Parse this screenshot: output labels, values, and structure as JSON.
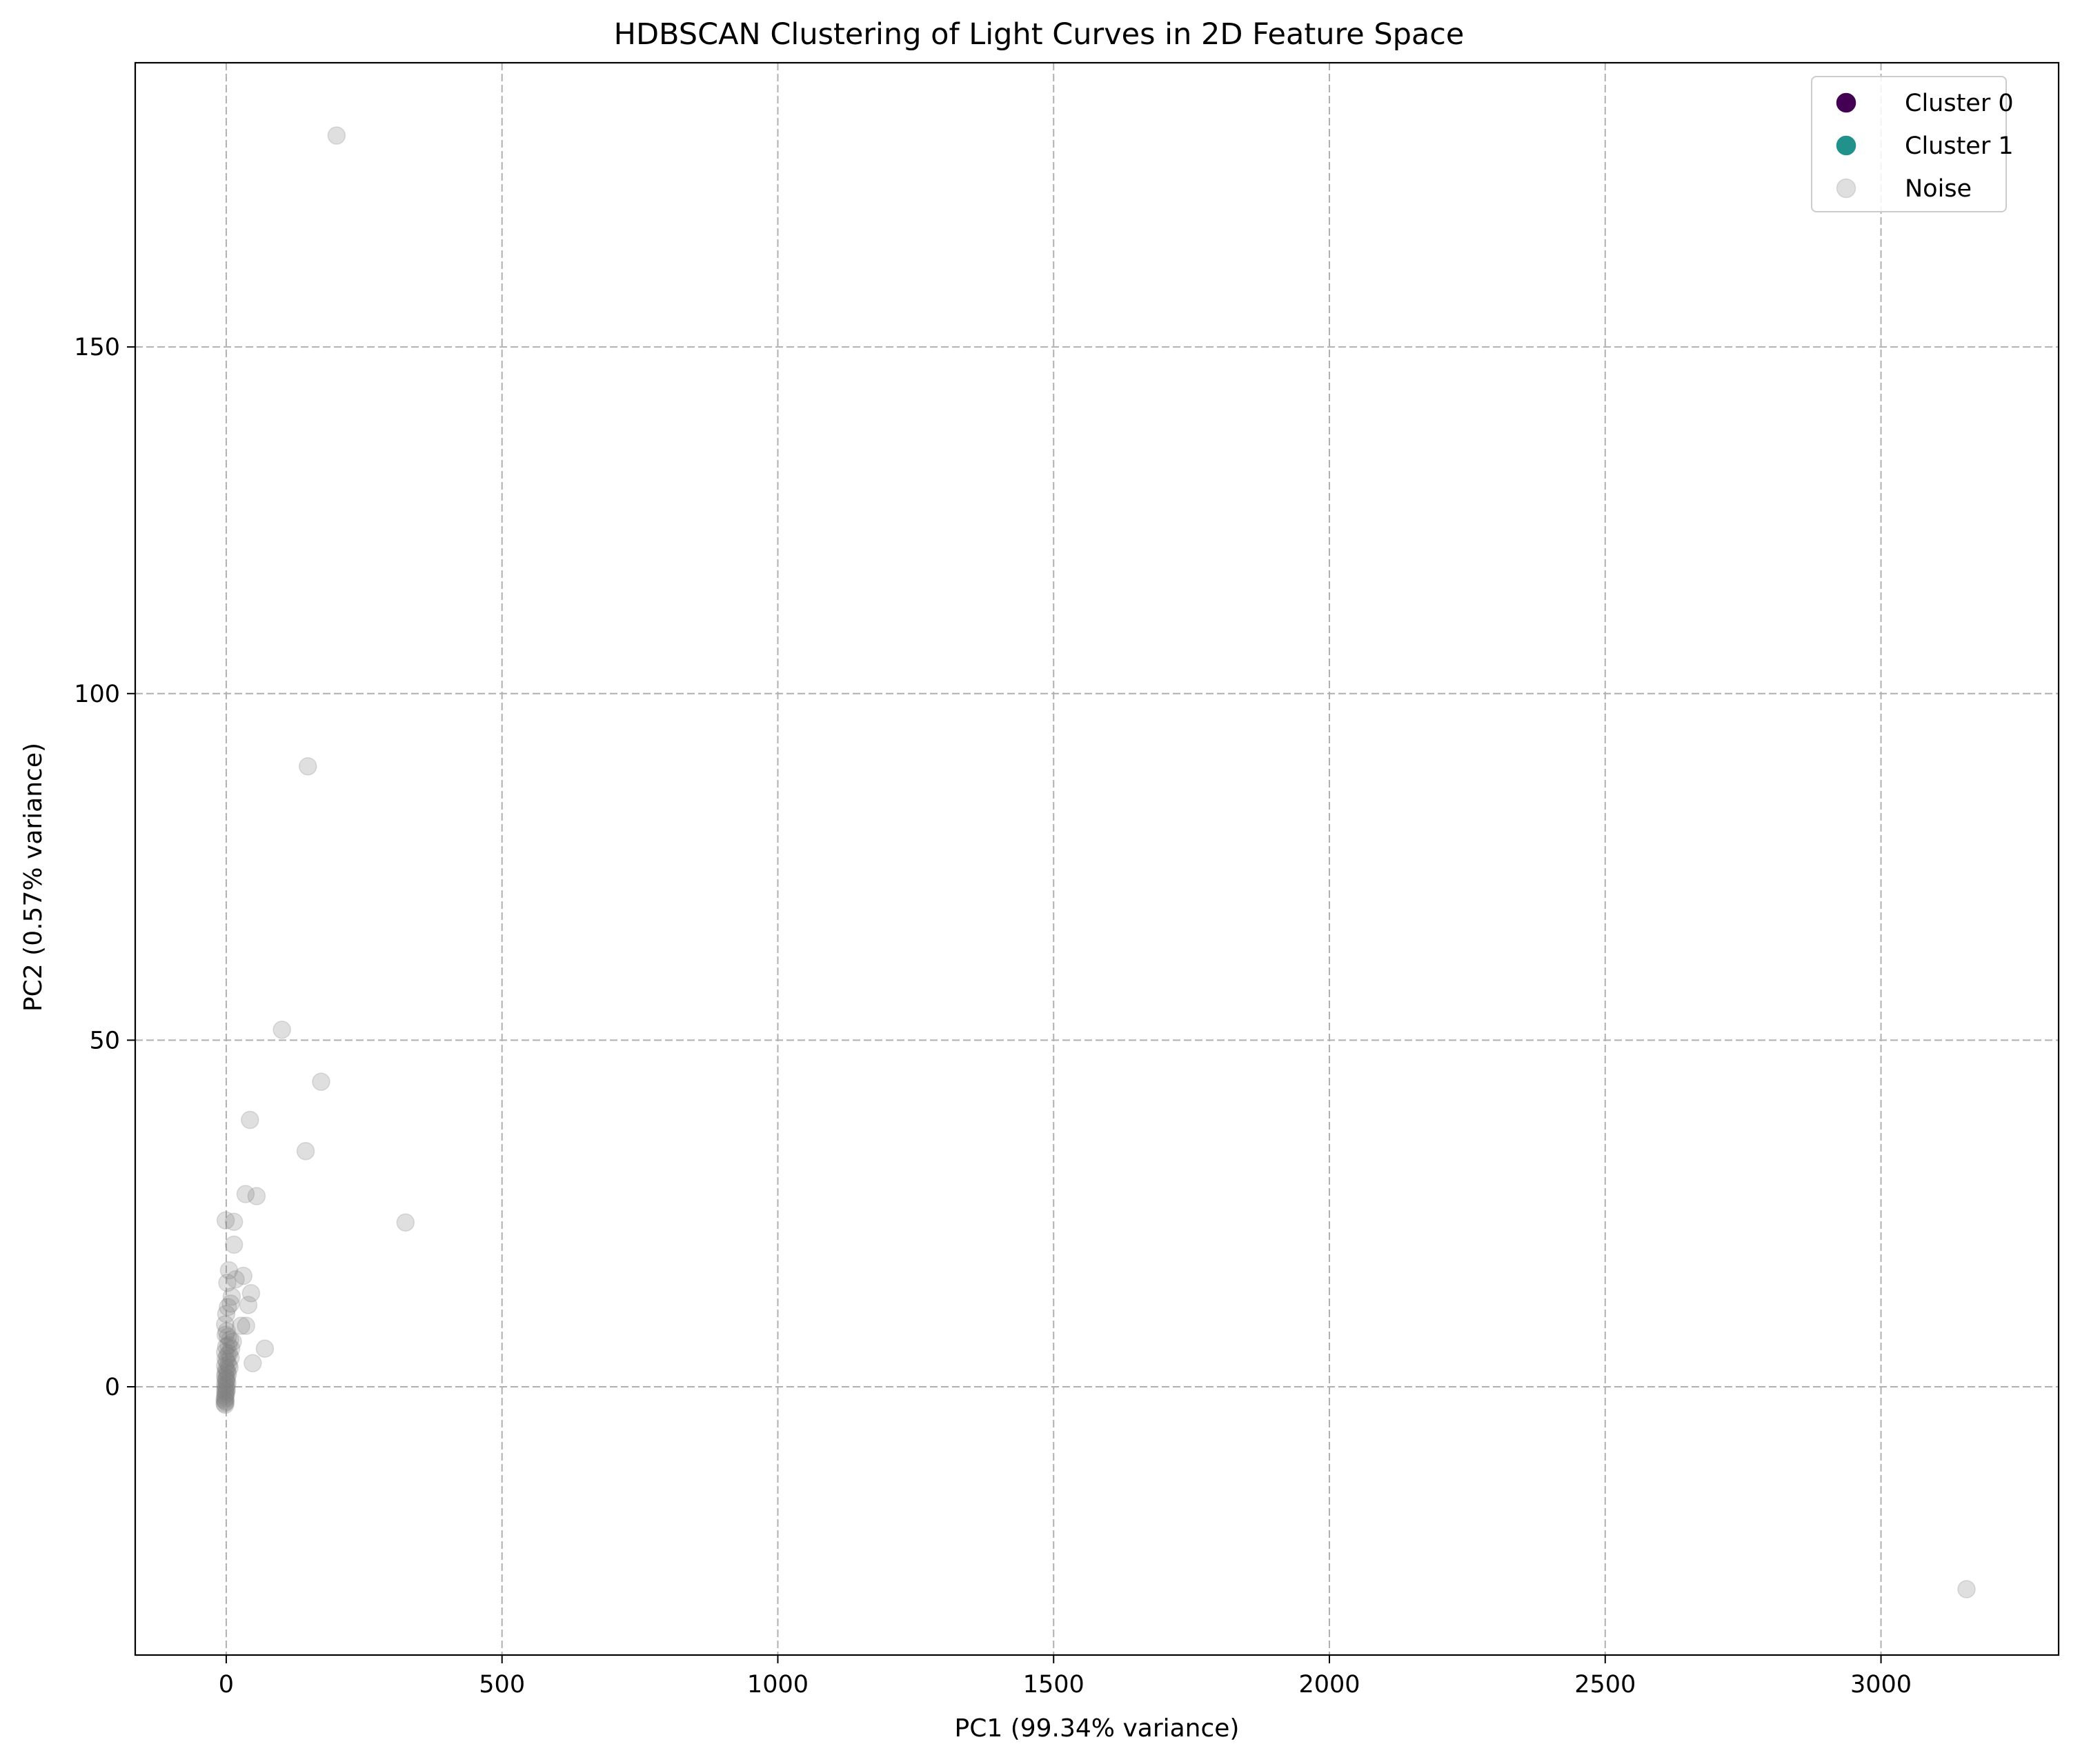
{
  "chart_data": {
    "type": "scatter",
    "title": "HDBSCAN Clustering of Light Curves in 2D Feature Space",
    "xlabel": "PC1 (99.34% variance)",
    "ylabel": "PC2 (0.57% variance)",
    "xlim": [
      -165,
      3322
    ],
    "ylim": [
      -38.7,
      191
    ],
    "xticks": [
      0,
      500,
      1000,
      1500,
      2000,
      2500,
      3000
    ],
    "yticks": [
      0,
      50,
      100,
      150
    ],
    "grid": true,
    "grid_style": "dashed",
    "legend_position": "top-right",
    "series": [
      {
        "name": "Cluster 0",
        "color": "#440154",
        "points": []
      },
      {
        "name": "Cluster 1",
        "color": "#21918c",
        "points": []
      },
      {
        "name": "Noise",
        "color": "#808080",
        "opacity": 0.25,
        "points": [
          [
            200,
            180.5
          ],
          [
            148,
            89.5
          ],
          [
            101,
            51.5
          ],
          [
            172,
            44.0
          ],
          [
            43,
            38.5
          ],
          [
            144,
            34.0
          ],
          [
            35,
            27.8
          ],
          [
            55,
            27.5
          ],
          [
            325,
            23.7
          ],
          [
            -1,
            24.0
          ],
          [
            14,
            23.8
          ],
          [
            14,
            20.5
          ],
          [
            17,
            15.5
          ],
          [
            31,
            16.0
          ],
          [
            5,
            16.8
          ],
          [
            2,
            15.0
          ],
          [
            45,
            13.5
          ],
          [
            10,
            13.0
          ],
          [
            40,
            11.8
          ],
          [
            8,
            12.0
          ],
          [
            3,
            11.5
          ],
          [
            0,
            10.5
          ],
          [
            27,
            8.8
          ],
          [
            36,
            8.8
          ],
          [
            -2,
            9.0
          ],
          [
            70,
            5.5
          ],
          [
            48,
            3.4
          ],
          [
            1,
            8.0
          ],
          [
            3,
            7.2
          ],
          [
            -1,
            7.5
          ],
          [
            7,
            6.8
          ],
          [
            12,
            6.5
          ],
          [
            4,
            6.0
          ],
          [
            9,
            5.5
          ],
          [
            0,
            5.8
          ],
          [
            -2,
            5.0
          ],
          [
            5,
            4.8
          ],
          [
            2,
            4.5
          ],
          [
            8,
            4.2
          ],
          [
            -1,
            4.0
          ],
          [
            1,
            3.6
          ],
          [
            4,
            3.2
          ],
          [
            -2,
            3.0
          ],
          [
            6,
            2.8
          ],
          [
            0,
            2.5
          ],
          [
            2,
            2.2
          ],
          [
            -1,
            2.0
          ],
          [
            3,
            1.8
          ],
          [
            -2,
            1.5
          ],
          [
            1,
            1.2
          ],
          [
            -1,
            1.0
          ],
          [
            0,
            0.8
          ],
          [
            2,
            0.5
          ],
          [
            -2,
            0.3
          ],
          [
            0,
            0.1
          ],
          [
            -1,
            -0.2
          ],
          [
            1,
            -0.4
          ],
          [
            -2,
            -0.6
          ],
          [
            0,
            -0.8
          ],
          [
            -1,
            -1.0
          ],
          [
            -2,
            -1.3
          ],
          [
            -1,
            -1.6
          ],
          [
            -3,
            -1.8
          ],
          [
            -2,
            -2.0
          ],
          [
            -1,
            -2.2
          ],
          [
            -3,
            -2.4
          ],
          [
            -2,
            -2.6
          ],
          [
            3155,
            -29.2
          ]
        ]
      }
    ]
  }
}
